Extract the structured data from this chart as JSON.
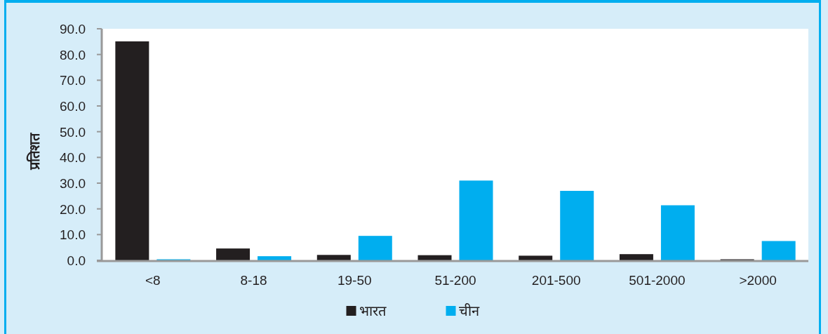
{
  "chart_data": {
    "type": "bar",
    "ylabel": "प्रतिशत",
    "categories": [
      "<8",
      "8-18",
      "19-50",
      "51-200",
      "201-500",
      "501-2000",
      ">2000"
    ],
    "series": [
      {
        "name": "भारत",
        "color": "#231f20",
        "values": [
          85.1,
          4.6,
          2.1,
          2.0,
          1.8,
          2.4,
          0.4
        ]
      },
      {
        "name": "चीन",
        "color": "#00aeef",
        "values": [
          0.4,
          1.6,
          9.5,
          31.0,
          27.0,
          21.4,
          7.5
        ]
      }
    ],
    "ylim": [
      0,
      90
    ],
    "yticks": [
      {
        "value": 0,
        "label": "0.0"
      },
      {
        "value": 10,
        "label": "10.0"
      },
      {
        "value": 20,
        "label": "20.0"
      },
      {
        "value": 30,
        "label": "30.0"
      },
      {
        "value": 40,
        "label": "40.0"
      },
      {
        "value": 50,
        "label": "50.0"
      },
      {
        "value": 60,
        "label": "60.0"
      },
      {
        "value": 70,
        "label": "70.0"
      },
      {
        "value": 80,
        "label": "80.0"
      },
      {
        "value": 90,
        "label": "90.0"
      }
    ],
    "legend": "bottom"
  }
}
